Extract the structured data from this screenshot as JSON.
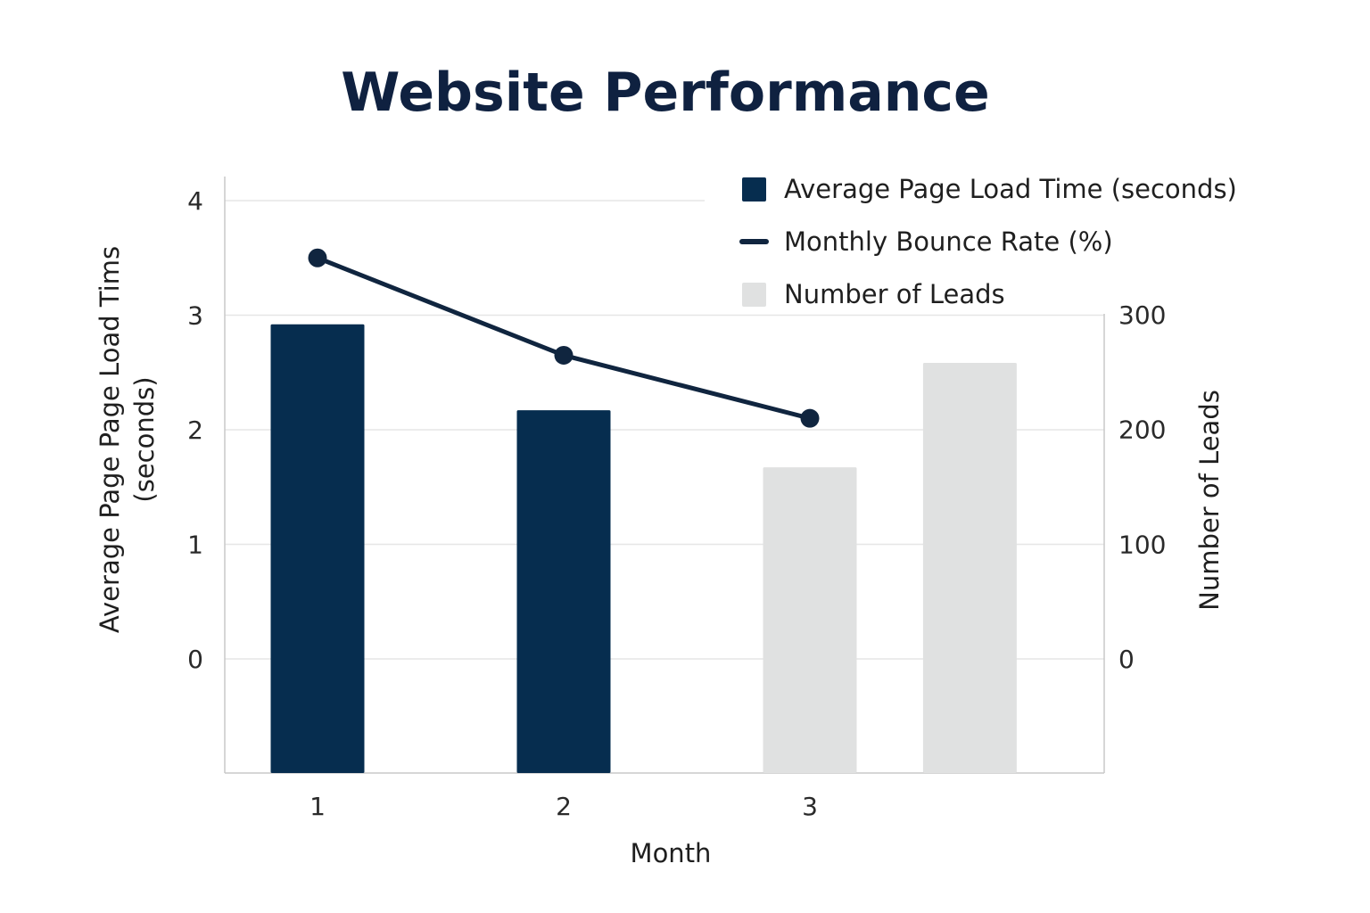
{
  "chart_data": {
    "type": "bar",
    "title": "Website Performance",
    "xlabel": "Month",
    "ylabel_left": [
      "Average Page Page Load Tims",
      "(seconds)"
    ],
    "ylabel_right": "Number of Leads",
    "x_tick_labels": [
      "1",
      "2",
      "3"
    ],
    "y_left_ticks": [
      "0",
      "1",
      "2",
      "3",
      "4"
    ],
    "y_right_ticks": [
      "0",
      "100",
      "200",
      "300"
    ],
    "ylim_left": [
      -1,
      4.2
    ],
    "ylim_right": [
      -100,
      320
    ],
    "grid": true,
    "legend_position": "top-right",
    "legend": [
      {
        "label": "Average Page Load Time (seconds)",
        "marker": "square",
        "color": "#062d4f"
      },
      {
        "label": "Monthly Bounce Rate (%)",
        "marker": "line",
        "color": "#10253f"
      },
      {
        "label": "Number of Leads",
        "marker": "square",
        "color": "#e0e1e1"
      }
    ],
    "series": [
      {
        "name": "Average Page Load Time (seconds)",
        "type": "bar",
        "axis": "left",
        "color": "#062d4f",
        "points": [
          {
            "x": 1,
            "y": 2.92
          },
          {
            "x": 2,
            "y": 2.17
          }
        ]
      },
      {
        "name": "Number of Leads",
        "type": "bar",
        "axis": "right",
        "color": "#e0e1e1",
        "points": [
          {
            "x": 3,
            "y": 167
          },
          {
            "x": 3.65,
            "y": 258
          }
        ]
      },
      {
        "name": "Monthly Bounce Rate (%)",
        "type": "line",
        "axis": "left",
        "color": "#10253f",
        "points": [
          {
            "x": 1,
            "y": 3.5
          },
          {
            "x": 2,
            "y": 2.65
          },
          {
            "x": 3,
            "y": 2.1
          }
        ]
      }
    ]
  }
}
